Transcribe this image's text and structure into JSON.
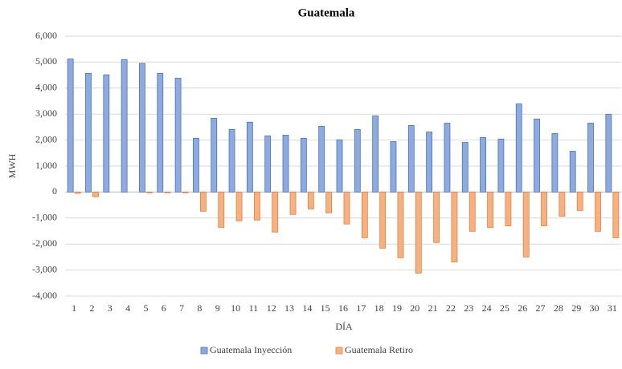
{
  "chart_data": {
    "type": "bar",
    "title": "Guatemala",
    "x_label": "DÍA",
    "y_label": "MWH",
    "categories": [
      "1",
      "2",
      "3",
      "4",
      "5",
      "6",
      "7",
      "8",
      "9",
      "10",
      "11",
      "12",
      "13",
      "14",
      "15",
      "16",
      "17",
      "18",
      "19",
      "20",
      "21",
      "22",
      "23",
      "24",
      "25",
      "26",
      "27",
      "28",
      "29",
      "30",
      "31"
    ],
    "series": [
      {
        "name": "Guatemala Inyección",
        "color": "#8faadc",
        "stroke": "#4472c4",
        "values": [
          5120,
          4570,
          4510,
          5100,
          4950,
          4570,
          4380,
          2070,
          2840,
          2410,
          2690,
          2160,
          2190,
          2070,
          2530,
          2010,
          2410,
          2930,
          1940,
          2560,
          2310,
          2650,
          1910,
          2100,
          2040,
          3390,
          2810,
          2250,
          1570,
          2650,
          2990
        ]
      },
      {
        "name": "Guatemala Retiro",
        "color": "#f4b183",
        "stroke": "#ed7d31",
        "values": [
          -50,
          -180,
          0,
          0,
          -30,
          -30,
          -30,
          -740,
          -1360,
          -1110,
          -1080,
          -1540,
          -860,
          -650,
          -800,
          -1230,
          -1760,
          -2160,
          -2530,
          -3120,
          -1940,
          -2690,
          -1510,
          -1360,
          -1300,
          -2500,
          -1300,
          -930,
          -710,
          -1510,
          -1760
        ]
      }
    ],
    "ylim": [
      -4000,
      6000
    ],
    "yticks": [
      {
        "value": -4000,
        "label": "-4,000"
      },
      {
        "value": -3000,
        "label": "-3,000"
      },
      {
        "value": -2000,
        "label": "-2,000"
      },
      {
        "value": -1000,
        "label": "-1,000"
      },
      0,
      {
        "value": 1000,
        "label": "1,000"
      },
      {
        "value": 2000,
        "label": "2,000"
      },
      {
        "value": 3000,
        "label": "3,000"
      },
      {
        "value": 4000,
        "label": "4,000"
      },
      {
        "value": 5000,
        "label": "5,000"
      },
      {
        "value": 6000,
        "label": "6,000"
      }
    ],
    "grid": true,
    "legend": "bottom"
  }
}
